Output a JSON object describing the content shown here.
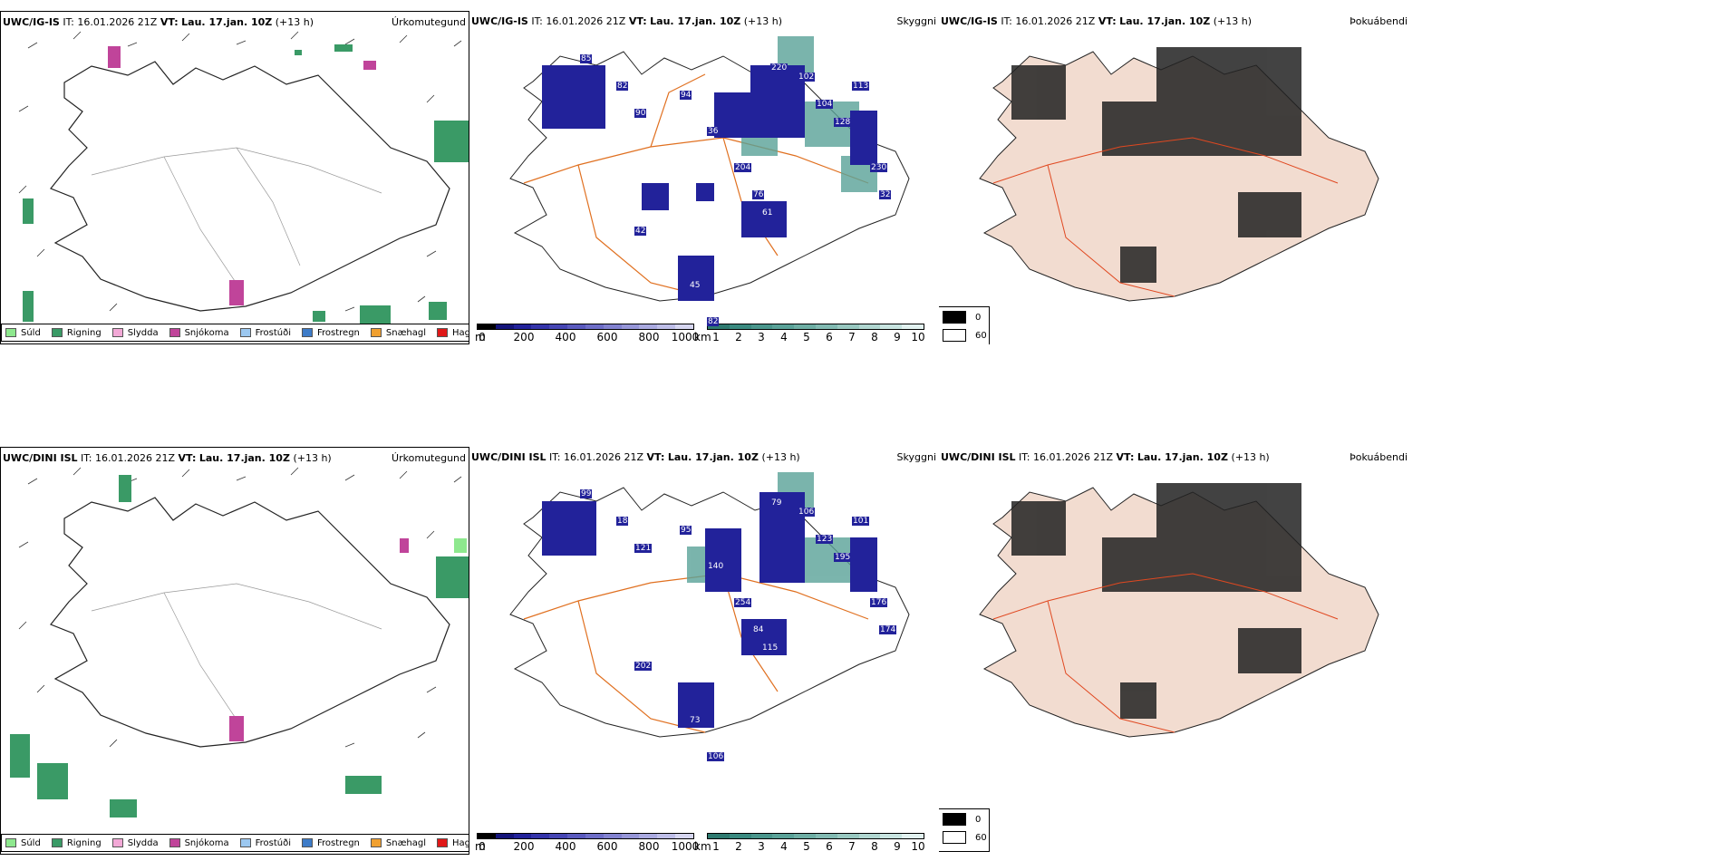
{
  "rows": [
    {
      "model": "UWC/IG-IS",
      "it_label": "IT:",
      "it_value": "16.01.2026 21Z",
      "vt_label": "VT:",
      "vt_value": "Lau. 17.jan. 10Z",
      "lead": "(+13 h)"
    },
    {
      "model": "UWC/DINI ISL",
      "it_label": "IT:",
      "it_value": "16.01.2026 21Z",
      "vt_label": "VT:",
      "vt_value": "Lau. 17.jan. 10Z",
      "lead": "(+13 h)"
    }
  ],
  "panel_names": {
    "precip_type": "Úrkomutegund",
    "visibility": "Skyggni",
    "fog": "Þokuábendi"
  },
  "precip_legend": [
    {
      "label": "Súld",
      "color": "#8ee88e"
    },
    {
      "label": "Rigning",
      "color": "#3a9a66"
    },
    {
      "label": "Slydda",
      "color": "#f2a8d6"
    },
    {
      "label": "Snjókoma",
      "color": "#c0449a"
    },
    {
      "label": "Frostúði",
      "color": "#9cc8f0"
    },
    {
      "label": "Frostregn",
      "color": "#3e7cc8"
    },
    {
      "label": "Snæhagl",
      "color": "#f0a030"
    },
    {
      "label": "Haglél",
      "color": "#e01818"
    }
  ],
  "cloud_base_colorbar": {
    "unit": "m",
    "ticks": [
      "0",
      "200",
      "400",
      "600",
      "800",
      "1000"
    ],
    "colors": [
      "#000000",
      "#14147a",
      "#22229a",
      "#3434aa",
      "#4646b4",
      "#5a5abe",
      "#6e6ec8",
      "#8282d0",
      "#9696d8",
      "#aaaae0",
      "#bebee8",
      "#d6d6f0"
    ]
  },
  "visibility_colorbar": {
    "unit": "km",
    "ticks": [
      "1",
      "2",
      "3",
      "4",
      "5",
      "6",
      "7",
      "8",
      "9",
      "10"
    ],
    "colors": [
      "#2e7a70",
      "#3a8a80",
      "#4a968c",
      "#5aa298",
      "#6eaea4",
      "#82bab2",
      "#98c8c0",
      "#b0d6d0",
      "#c8e4e0",
      "#e2f2f0"
    ]
  },
  "fog_legend": [
    {
      "label": "0",
      "color": "#000000"
    },
    {
      "label": "60",
      "color": "#ffffff"
    }
  ],
  "cloud_labels": {
    "top": [
      "85",
      "82",
      "90",
      "94",
      "36",
      "204",
      "76",
      "220",
      "102",
      "104",
      "128",
      "113",
      "230",
      "32",
      "61",
      "42",
      "45",
      "82"
    ],
    "bottom": [
      "99",
      "18",
      "121",
      "95",
      "140",
      "254",
      "84",
      "79",
      "106",
      "123",
      "195",
      "101",
      "176",
      "174",
      "115",
      "202",
      "73",
      "106"
    ]
  }
}
